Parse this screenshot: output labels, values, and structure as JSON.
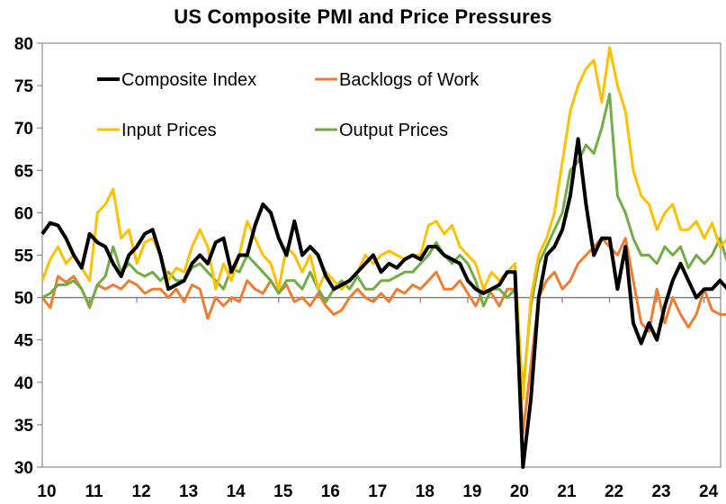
{
  "chart_data": {
    "type": "line",
    "title": "US Composite PMI and Price Pressures",
    "xlabel": "",
    "ylabel": "",
    "ylim": [
      30,
      80
    ],
    "yticks": [
      30,
      35,
      40,
      45,
      50,
      55,
      60,
      65,
      70,
      75,
      80
    ],
    "xticks": [
      "10",
      "11",
      "12",
      "13",
      "14",
      "15",
      "16",
      "17",
      "18",
      "19",
      "20",
      "21",
      "22",
      "23",
      "24"
    ],
    "x_start_year": 2010.0,
    "x_end_year": 2024.35,
    "x_step_years": 0.1667,
    "reference_line": 50,
    "grid": false,
    "legend_position": "top-left",
    "series": [
      {
        "name": "Composite Index",
        "color": "#000000",
        "width": 4,
        "values": [
          57.5,
          58.8,
          58.5,
          57,
          55,
          53.5,
          57.5,
          56.5,
          56,
          54,
          52.5,
          55,
          56,
          57.5,
          58,
          55,
          51,
          51.5,
          52,
          54,
          55,
          54,
          56.5,
          57,
          53,
          55,
          55,
          58.5,
          61,
          60,
          57,
          55,
          59,
          55,
          56,
          55,
          52.5,
          51,
          51.5,
          52,
          53,
          54,
          55,
          53,
          54,
          53.5,
          54.5,
          55,
          54.5,
          56,
          56,
          55,
          54.5,
          54,
          52,
          51,
          50.5,
          51,
          51.5,
          53,
          53,
          30,
          38,
          50,
          55,
          56,
          58,
          62,
          68.7,
          61,
          55,
          57,
          57,
          51,
          56,
          47,
          44.6,
          47,
          45,
          49,
          52,
          54,
          52,
          50,
          51,
          51,
          52,
          51
        ]
      },
      {
        "name": "Backlogs of Work",
        "color": "#ED7D31",
        "width": 3,
        "values": [
          50,
          48.8,
          52.5,
          51.8,
          52.5,
          51,
          48.8,
          51.5,
          51,
          51.5,
          51,
          52,
          51.5,
          50.5,
          51,
          51,
          50,
          51,
          49.5,
          51.5,
          51,
          47.5,
          50,
          49,
          50,
          49.5,
          52,
          51,
          50.5,
          52,
          50.5,
          51.5,
          49.5,
          50,
          49,
          50.5,
          49,
          48,
          48.5,
          50,
          51,
          50,
          49.5,
          50.5,
          49.5,
          51,
          50.5,
          51.5,
          51,
          52,
          53,
          51,
          51,
          52,
          50.5,
          49,
          51,
          50.5,
          49,
          51,
          51,
          34,
          42,
          50,
          52,
          53,
          51,
          52,
          54,
          55,
          56,
          57,
          56,
          55,
          57,
          52,
          47,
          46,
          51,
          47,
          50,
          48,
          46.5,
          48,
          51,
          48.5,
          48,
          48
        ]
      },
      {
        "name": "Input Prices",
        "color": "#FFC000",
        "width": 3,
        "values": [
          52,
          54.5,
          56,
          54,
          55,
          53.5,
          52,
          60,
          61,
          62.8,
          57,
          58,
          54,
          56.5,
          57,
          55,
          52,
          53.5,
          53,
          56,
          58,
          56,
          51,
          54,
          52,
          55,
          59,
          57,
          55,
          54,
          51,
          56,
          55,
          53,
          55,
          51,
          53,
          52,
          51,
          52,
          53,
          55,
          54,
          55,
          55.5,
          55,
          54.5,
          55,
          55,
          58.5,
          59,
          57.5,
          58.5,
          56,
          55,
          54,
          51,
          53,
          52,
          53,
          54,
          38,
          50,
          55,
          57,
          60,
          66,
          72,
          75,
          77,
          78,
          73,
          79.5,
          75,
          72,
          65,
          62,
          61,
          58,
          60,
          61,
          58,
          58,
          59,
          57,
          58.8,
          56,
          57
        ]
      },
      {
        "name": "Output Prices",
        "color": "#70AD47",
        "width": 3,
        "values": [
          50,
          50.5,
          51.5,
          51.5,
          52,
          51,
          49,
          51.5,
          52.5,
          56,
          53,
          54,
          53,
          52.5,
          53,
          52,
          53,
          52,
          52,
          53.5,
          54,
          53,
          52,
          51,
          53.5,
          53,
          55,
          54,
          53,
          52,
          50.5,
          52,
          52,
          51,
          53,
          51,
          49.5,
          51,
          52,
          51,
          52.5,
          51,
          51,
          52,
          52,
          52.5,
          53,
          53,
          54,
          55,
          56.5,
          55,
          54,
          55,
          54,
          52,
          49,
          51,
          51,
          50,
          51,
          39,
          49,
          54,
          56,
          58,
          60,
          65,
          66,
          68,
          67,
          70,
          74,
          62,
          60,
          57,
          55,
          55,
          54,
          56,
          55,
          56,
          53.5,
          55,
          54,
          55,
          57,
          54
        ]
      }
    ]
  }
}
